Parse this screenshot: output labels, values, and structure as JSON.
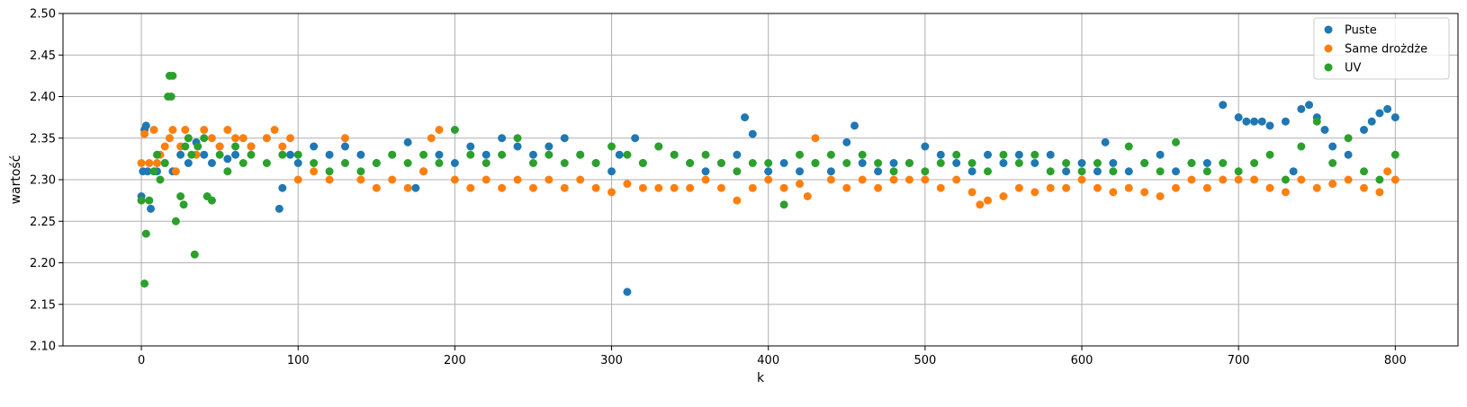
{
  "chart_data": {
    "type": "scatter",
    "title": "",
    "xlabel": "k",
    "ylabel": "wartość",
    "xlim": [
      -50,
      840
    ],
    "ylim": [
      2.1,
      2.5
    ],
    "xticks": [
      0,
      100,
      200,
      300,
      400,
      500,
      600,
      700,
      800
    ],
    "yticks": [
      2.1,
      2.15,
      2.2,
      2.25,
      2.3,
      2.35,
      2.4,
      2.45,
      2.5
    ],
    "grid": true,
    "legend_position": "top-right",
    "series": [
      {
        "name": "Puste",
        "color": "#1f77b4",
        "x": [
          0,
          1,
          2,
          3,
          4,
          6,
          10,
          15,
          20,
          25,
          30,
          35,
          40,
          45,
          50,
          55,
          60,
          70,
          80,
          88,
          90,
          95,
          100,
          110,
          120,
          130,
          140,
          150,
          160,
          170,
          175,
          180,
          190,
          200,
          210,
          220,
          230,
          240,
          250,
          260,
          270,
          280,
          290,
          300,
          305,
          310,
          315,
          320,
          330,
          340,
          350,
          360,
          370,
          380,
          385,
          390,
          400,
          410,
          420,
          430,
          440,
          450,
          455,
          460,
          470,
          480,
          490,
          500,
          510,
          520,
          530,
          540,
          550,
          560,
          570,
          580,
          590,
          600,
          610,
          615,
          620,
          630,
          640,
          650,
          660,
          670,
          680,
          690,
          700,
          705,
          710,
          715,
          720,
          730,
          735,
          740,
          745,
          750,
          755,
          760,
          770,
          780,
          785,
          790,
          795,
          800
        ],
        "y": [
          2.28,
          2.31,
          2.36,
          2.365,
          2.31,
          2.265,
          2.31,
          2.32,
          2.31,
          2.33,
          2.32,
          2.345,
          2.33,
          2.32,
          2.34,
          2.325,
          2.33,
          2.34,
          2.35,
          2.265,
          2.29,
          2.33,
          2.32,
          2.34,
          2.33,
          2.34,
          2.33,
          2.32,
          2.33,
          2.345,
          2.29,
          2.31,
          2.33,
          2.32,
          2.34,
          2.33,
          2.35,
          2.34,
          2.33,
          2.34,
          2.35,
          2.33,
          2.32,
          2.31,
          2.33,
          2.165,
          2.35,
          2.32,
          2.34,
          2.33,
          2.32,
          2.31,
          2.32,
          2.33,
          2.375,
          2.355,
          2.31,
          2.32,
          2.31,
          2.32,
          2.31,
          2.345,
          2.365,
          2.32,
          2.31,
          2.32,
          2.32,
          2.34,
          2.33,
          2.32,
          2.31,
          2.33,
          2.32,
          2.33,
          2.32,
          2.33,
          2.31,
          2.32,
          2.31,
          2.345,
          2.32,
          2.31,
          2.32,
          2.33,
          2.31,
          2.32,
          2.32,
          2.39,
          2.375,
          2.37,
          2.37,
          2.37,
          2.365,
          2.37,
          2.31,
          2.385,
          2.39,
          2.375,
          2.36,
          2.34,
          2.33,
          2.36,
          2.37,
          2.38,
          2.385,
          2.375
        ]
      },
      {
        "name": "Same drożdże",
        "color": "#ff7f0e",
        "x": [
          0,
          2,
          5,
          8,
          10,
          12,
          15,
          18,
          20,
          22,
          25,
          28,
          30,
          35,
          40,
          45,
          50,
          55,
          60,
          65,
          70,
          80,
          85,
          90,
          95,
          100,
          110,
          120,
          130,
          140,
          150,
          160,
          170,
          180,
          185,
          190,
          200,
          210,
          220,
          230,
          240,
          250,
          260,
          270,
          280,
          290,
          300,
          310,
          320,
          330,
          340,
          350,
          360,
          370,
          380,
          390,
          400,
          410,
          420,
          425,
          430,
          440,
          450,
          460,
          470,
          480,
          490,
          500,
          510,
          520,
          530,
          535,
          540,
          550,
          560,
          570,
          580,
          590,
          600,
          610,
          620,
          630,
          640,
          650,
          660,
          670,
          680,
          690,
          700,
          710,
          720,
          730,
          740,
          750,
          760,
          770,
          780,
          790,
          795,
          800
        ],
        "y": [
          2.32,
          2.355,
          2.32,
          2.36,
          2.32,
          2.33,
          2.34,
          2.35,
          2.36,
          2.31,
          2.34,
          2.36,
          2.35,
          2.33,
          2.36,
          2.35,
          2.34,
          2.36,
          2.35,
          2.35,
          2.34,
          2.35,
          2.36,
          2.34,
          2.35,
          2.3,
          2.31,
          2.3,
          2.35,
          2.3,
          2.29,
          2.3,
          2.29,
          2.31,
          2.35,
          2.36,
          2.3,
          2.29,
          2.3,
          2.29,
          2.3,
          2.29,
          2.3,
          2.29,
          2.3,
          2.29,
          2.285,
          2.295,
          2.29,
          2.29,
          2.29,
          2.29,
          2.3,
          2.29,
          2.275,
          2.29,
          2.3,
          2.29,
          2.295,
          2.28,
          2.35,
          2.3,
          2.29,
          2.3,
          2.29,
          2.3,
          2.3,
          2.3,
          2.29,
          2.3,
          2.285,
          2.27,
          2.275,
          2.28,
          2.29,
          2.285,
          2.29,
          2.29,
          2.3,
          2.29,
          2.285,
          2.29,
          2.285,
          2.28,
          2.29,
          2.3,
          2.29,
          2.3,
          2.3,
          2.3,
          2.29,
          2.285,
          2.3,
          2.29,
          2.295,
          2.3,
          2.29,
          2.285,
          2.31,
          2.3
        ]
      },
      {
        "name": "UV",
        "color": "#2ca02c",
        "x": [
          0,
          2,
          3,
          5,
          8,
          10,
          12,
          15,
          17,
          18,
          19,
          20,
          22,
          25,
          27,
          28,
          30,
          32,
          34,
          36,
          40,
          42,
          45,
          50,
          55,
          60,
          65,
          70,
          80,
          90,
          100,
          110,
          120,
          130,
          140,
          150,
          160,
          170,
          180,
          190,
          200,
          210,
          220,
          230,
          240,
          250,
          260,
          270,
          280,
          290,
          300,
          310,
          320,
          330,
          340,
          350,
          360,
          370,
          380,
          390,
          400,
          410,
          420,
          430,
          440,
          450,
          460,
          470,
          480,
          490,
          500,
          510,
          520,
          530,
          540,
          550,
          560,
          570,
          580,
          590,
          600,
          610,
          620,
          630,
          640,
          650,
          660,
          670,
          680,
          690,
          700,
          710,
          720,
          730,
          740,
          750,
          760,
          770,
          780,
          790,
          800
        ],
        "y": [
          2.275,
          2.175,
          2.235,
          2.275,
          2.31,
          2.33,
          2.3,
          2.32,
          2.4,
          2.425,
          2.4,
          2.425,
          2.25,
          2.28,
          2.27,
          2.34,
          2.35,
          2.33,
          2.21,
          2.34,
          2.35,
          2.28,
          2.275,
          2.33,
          2.31,
          2.34,
          2.32,
          2.33,
          2.32,
          2.33,
          2.33,
          2.32,
          2.31,
          2.32,
          2.31,
          2.32,
          2.33,
          2.32,
          2.33,
          2.32,
          2.36,
          2.33,
          2.32,
          2.33,
          2.35,
          2.32,
          2.33,
          2.32,
          2.33,
          2.32,
          2.34,
          2.33,
          2.32,
          2.34,
          2.33,
          2.32,
          2.33,
          2.32,
          2.31,
          2.32,
          2.32,
          2.27,
          2.33,
          2.32,
          2.33,
          2.32,
          2.33,
          2.32,
          2.31,
          2.32,
          2.31,
          2.32,
          2.33,
          2.32,
          2.31,
          2.33,
          2.32,
          2.33,
          2.31,
          2.32,
          2.31,
          2.32,
          2.31,
          2.34,
          2.32,
          2.31,
          2.345,
          2.32,
          2.31,
          2.32,
          2.31,
          2.32,
          2.33,
          2.3,
          2.34,
          2.37,
          2.32,
          2.35,
          2.31,
          2.3,
          2.33
        ]
      }
    ]
  }
}
